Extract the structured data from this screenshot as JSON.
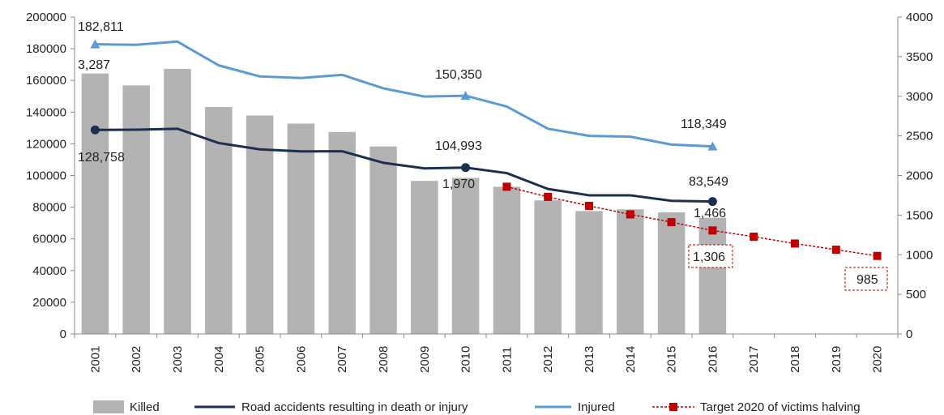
{
  "chart_data": {
    "type": "bar",
    "categories": [
      "2001",
      "2002",
      "2003",
      "2004",
      "2005",
      "2006",
      "2007",
      "2008",
      "2009",
      "2010",
      "2011",
      "2012",
      "2013",
      "2014",
      "2015",
      "2016",
      "2017",
      "2018",
      "2019",
      "2020"
    ],
    "left_axis": {
      "ylim": [
        0,
        200000
      ],
      "ticks": [
        "0",
        "20000",
        "40000",
        "60000",
        "80000",
        "100000",
        "120000",
        "140000",
        "160000",
        "180000",
        "200000"
      ]
    },
    "right_axis": {
      "ylim": [
        0,
        4000
      ],
      "ticks": [
        "0",
        "500",
        "1000",
        "1500",
        "2000",
        "2500",
        "3000",
        "3500",
        "4000"
      ]
    },
    "grid": false,
    "legend_position": "bottom",
    "series": [
      {
        "name": "Killed",
        "type": "bar",
        "axis": "right",
        "color": "#b3b3b3",
        "values": [
          3287,
          3137,
          3346,
          2864,
          2757,
          2655,
          2549,
          2367,
          1932,
          1970,
          1858,
          1686,
          1551,
          1572,
          1535,
          1466,
          null,
          null,
          null,
          null
        ]
      },
      {
        "name": "Road accidents resulting in death or injury",
        "type": "line",
        "axis": "left",
        "color": "#1b2f4e",
        "values": [
          128758,
          128900,
          129500,
          120500,
          116500,
          115200,
          115300,
          108000,
          104500,
          104993,
          101500,
          91500,
          87500,
          87500,
          84000,
          83549,
          null,
          null,
          null,
          null
        ]
      },
      {
        "name": "Injured",
        "type": "line",
        "axis": "left",
        "color": "#5b9bd5",
        "values": [
          182811,
          182500,
          184500,
          169500,
          162500,
          161500,
          163500,
          155000,
          149800,
          150350,
          143500,
          129500,
          125000,
          124500,
          119500,
          118349,
          null,
          null,
          null,
          null
        ]
      },
      {
        "name": "Target 2020 of victims halving",
        "type": "line",
        "axis": "right",
        "color": "#c00000",
        "style": "dashed",
        "values": [
          null,
          null,
          null,
          null,
          null,
          null,
          null,
          null,
          null,
          null,
          1858,
          1730,
          1617,
          1509,
          1411,
          1306,
          1228,
          1141,
          1063,
          985
        ]
      }
    ],
    "labels": {
      "injured_2001": "182,811",
      "killed_2001": "3,287",
      "accidents_2001": "128,758",
      "injured_2010": "150,350",
      "accidents_2010": "104,993",
      "killed_2010": "1,970",
      "injured_2016": "118,349",
      "accidents_2016": "83,549",
      "killed_2016": "1,466",
      "target_2016": "1,306",
      "target_2020": "985"
    }
  }
}
